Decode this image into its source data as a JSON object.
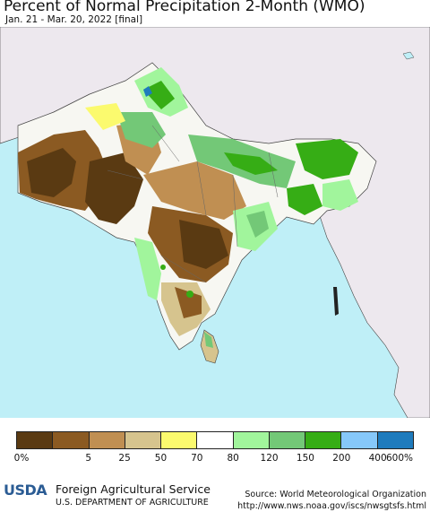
{
  "header": {
    "title": "Percent of Normal Precipitation 2-Month (WMO)",
    "subtitle": "Jan. 21 - Mar. 20, 2022 [final]"
  },
  "legend": {
    "colors": [
      "#5a3a12",
      "#8b5a22",
      "#c08f52",
      "#d6c48e",
      "#fbfa6e",
      "#ffffff",
      "#a1f59c",
      "#73c877",
      "#36ad15",
      "#86c8fa",
      "#1e7bbd"
    ],
    "ticks": [
      "0%",
      "5",
      "25",
      "50",
      "70",
      "80",
      "120",
      "150",
      "200",
      "400",
      "600%"
    ]
  },
  "footer": {
    "logo_text": "USDA",
    "agency": "Foreign Agricultural Service",
    "department": "U.S. DEPARTMENT OF AGRICULTURE",
    "source_line1": "Source: World Meteorological Organization",
    "source_line2": "http://www.nws.noaa.gov/iscs/nwsgtsfs.html"
  },
  "map": {
    "ocean_color": "#bfeff7",
    "outside_land_color": "#ede8ee"
  }
}
